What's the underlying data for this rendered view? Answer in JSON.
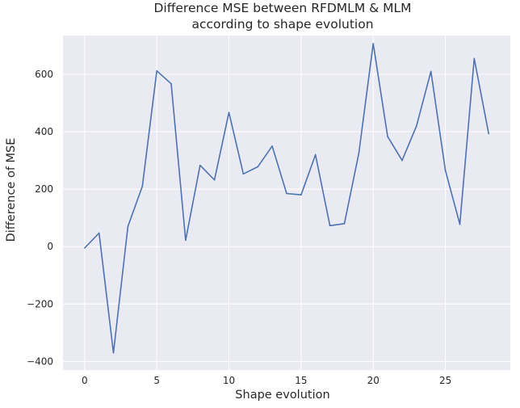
{
  "chart_data": {
    "type": "line",
    "title_lines": [
      "Difference MSE between RFDMLM & MLM",
      "according to shape evolution"
    ],
    "xlabel": "Shape evolution",
    "ylabel": "Difference of MSE",
    "xlim": [
      -1.5,
      29.5
    ],
    "ylim": [
      -430,
      735
    ],
    "xticks": [
      0,
      5,
      10,
      15,
      20,
      25
    ],
    "yticks": [
      -400,
      -200,
      0,
      200,
      400,
      600
    ],
    "grid": true,
    "legend": "none",
    "series": [
      {
        "color": "#4c72b0",
        "x": [
          0,
          1,
          2,
          3,
          4,
          5,
          6,
          7,
          8,
          9,
          10,
          11,
          12,
          13,
          14,
          15,
          16,
          17,
          18,
          19,
          20,
          21,
          22,
          23,
          24,
          25,
          26,
          27,
          28
        ],
        "y": [
          -5,
          47,
          -370,
          70,
          210,
          612,
          567,
          22,
          283,
          232,
          467,
          253,
          278,
          350,
          185,
          180,
          320,
          73,
          80,
          325,
          707,
          383,
          300,
          420,
          610,
          265,
          78,
          655,
          393
        ]
      }
    ],
    "colors": {
      "plot_background": "#eaeaf2",
      "grid": "#ffffff"
    }
  }
}
